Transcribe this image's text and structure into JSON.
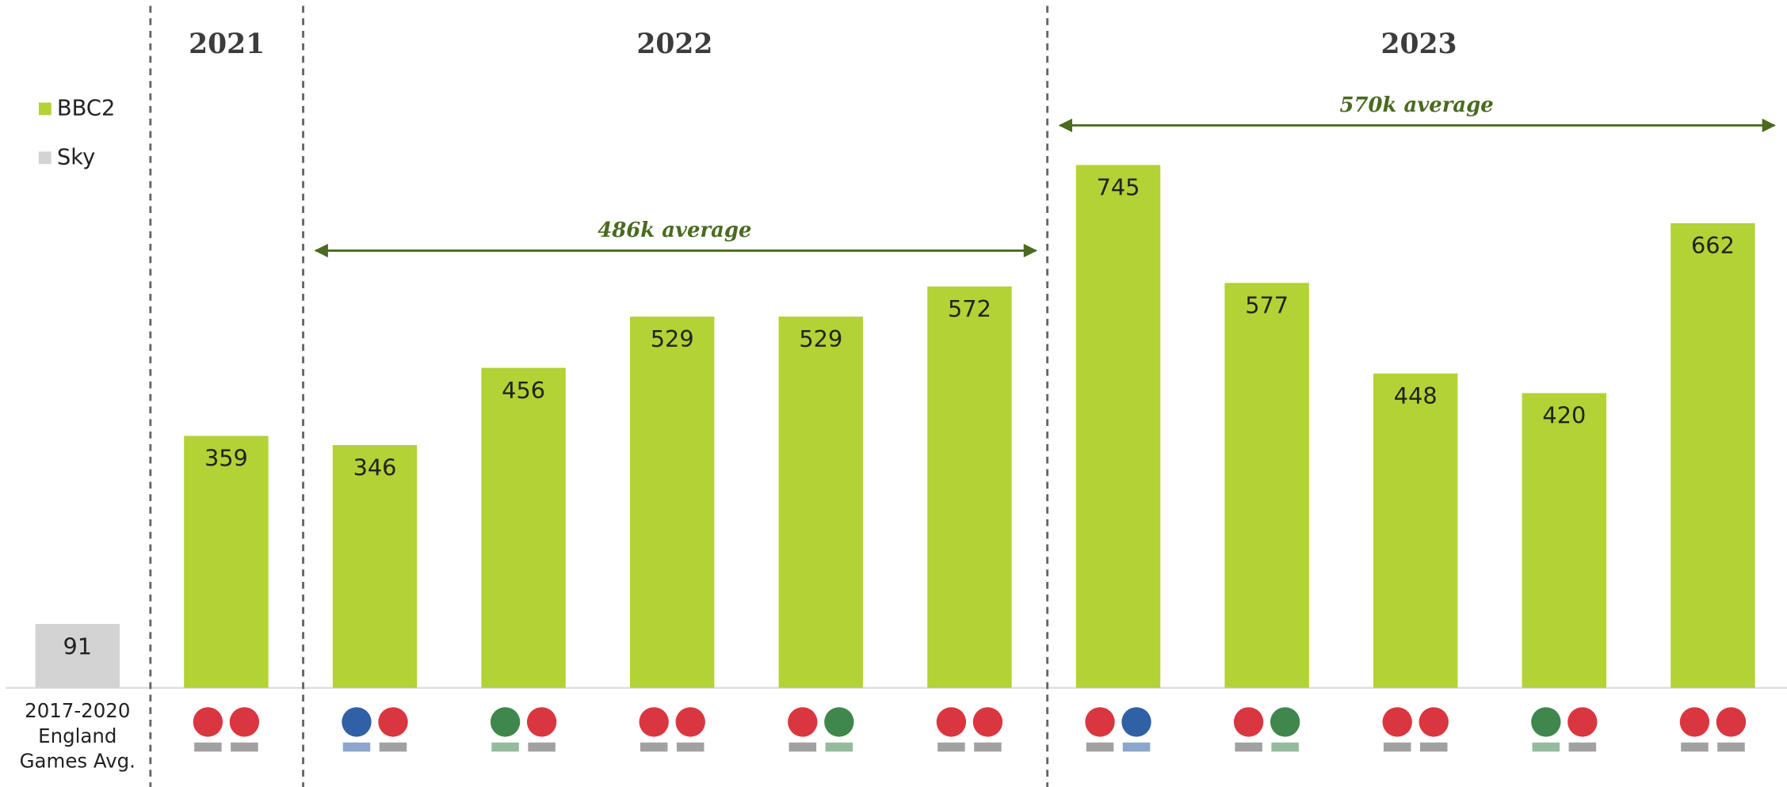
{
  "chart_data": {
    "type": "bar",
    "categories": [
      "2017-2020 England Games Avg.",
      null,
      null,
      null,
      null,
      null,
      null,
      null,
      null,
      null,
      null,
      null
    ],
    "series": [
      {
        "name": "BBC2",
        "color": "#b2d235",
        "values": [
          null,
          359,
          346,
          456,
          529,
          529,
          572,
          745,
          577,
          448,
          420,
          662
        ]
      },
      {
        "name": "Sky",
        "color": "#d3d3d3",
        "values": [
          91,
          null,
          null,
          null,
          null,
          null,
          null,
          null,
          null,
          null,
          null,
          null
        ]
      }
    ],
    "ylim": [
      0,
      980
    ],
    "year_labels": [
      "2021",
      "2022",
      "2023"
    ],
    "averages": [
      "486k average",
      "570k average"
    ],
    "average_color": "#4a6b1f"
  }
}
